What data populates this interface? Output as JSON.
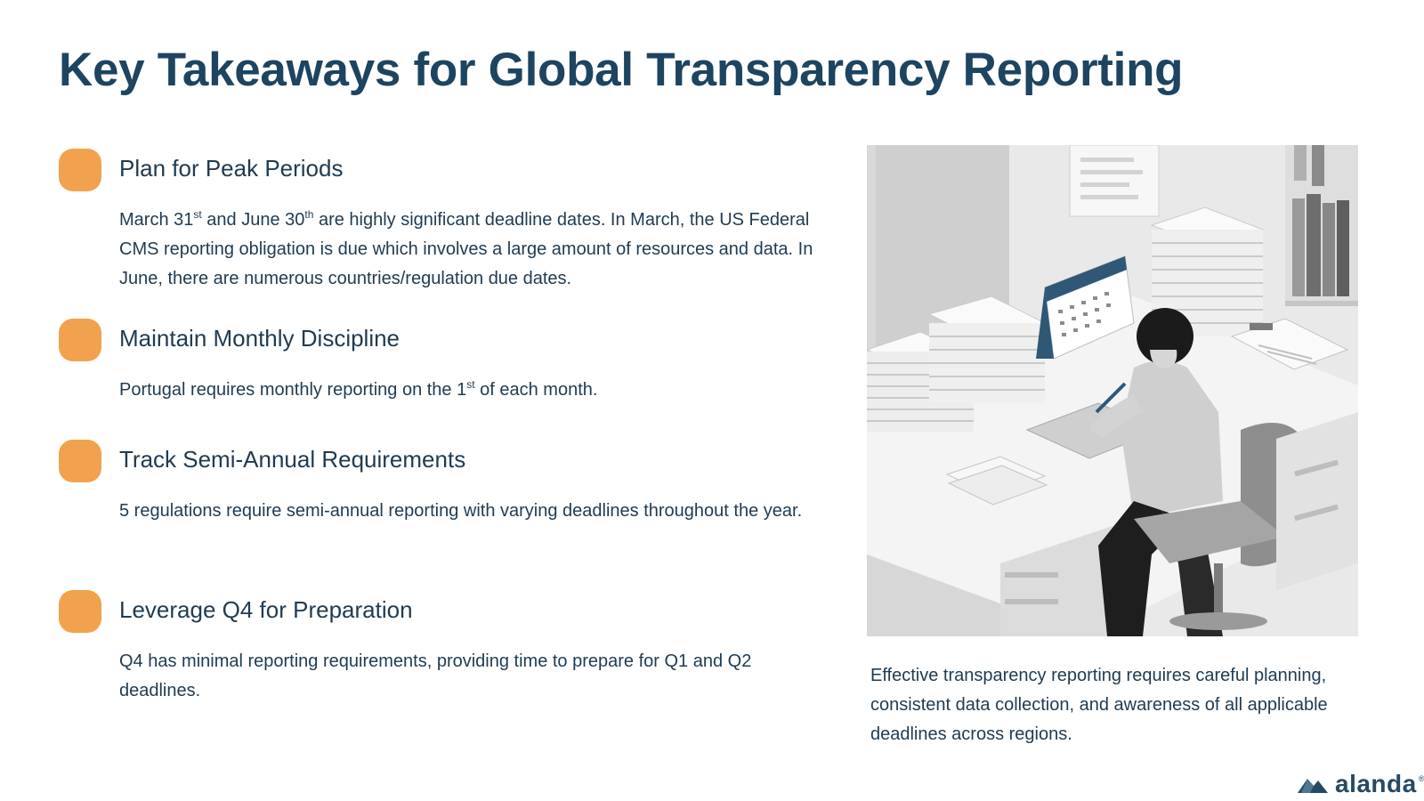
{
  "slide": {
    "title": "Key Takeaways for Global Transparency Reporting"
  },
  "takeaways": [
    {
      "title": "Plan for Peak Periods",
      "body_parts": [
        "March 31",
        "st",
        " and June 30",
        "th",
        " are highly significant deadline dates. In March, the US Federal CMS reporting obligation is due which involves a large amount of resources and data.  In June, there are numerous countries/regulation due dates."
      ]
    },
    {
      "title": "Maintain Monthly Discipline",
      "body_parts": [
        "Portugal requires monthly reporting on the 1",
        "st",
        " of each month."
      ]
    },
    {
      "title": "Track Semi-Annual Requirements",
      "body": "5 regulations require semi-annual reporting with varying deadlines throughout the year."
    },
    {
      "title": "Leverage Q4 for Preparation",
      "body": "Q4 has minimal reporting requirements, providing time to prepare for Q1 and Q2 deadlines."
    }
  ],
  "caption": "Effective transparency reporting requires careful planning, consistent data collection, and awareness of all applicable deadlines across regions.",
  "logo": {
    "text": "alanda",
    "mark": "®",
    "icon": "alanda-mountain-icon",
    "color": "#264a63"
  },
  "colors": {
    "title": "#1d4460",
    "text": "#1f3b52",
    "bullet": "#f2a14e"
  }
}
